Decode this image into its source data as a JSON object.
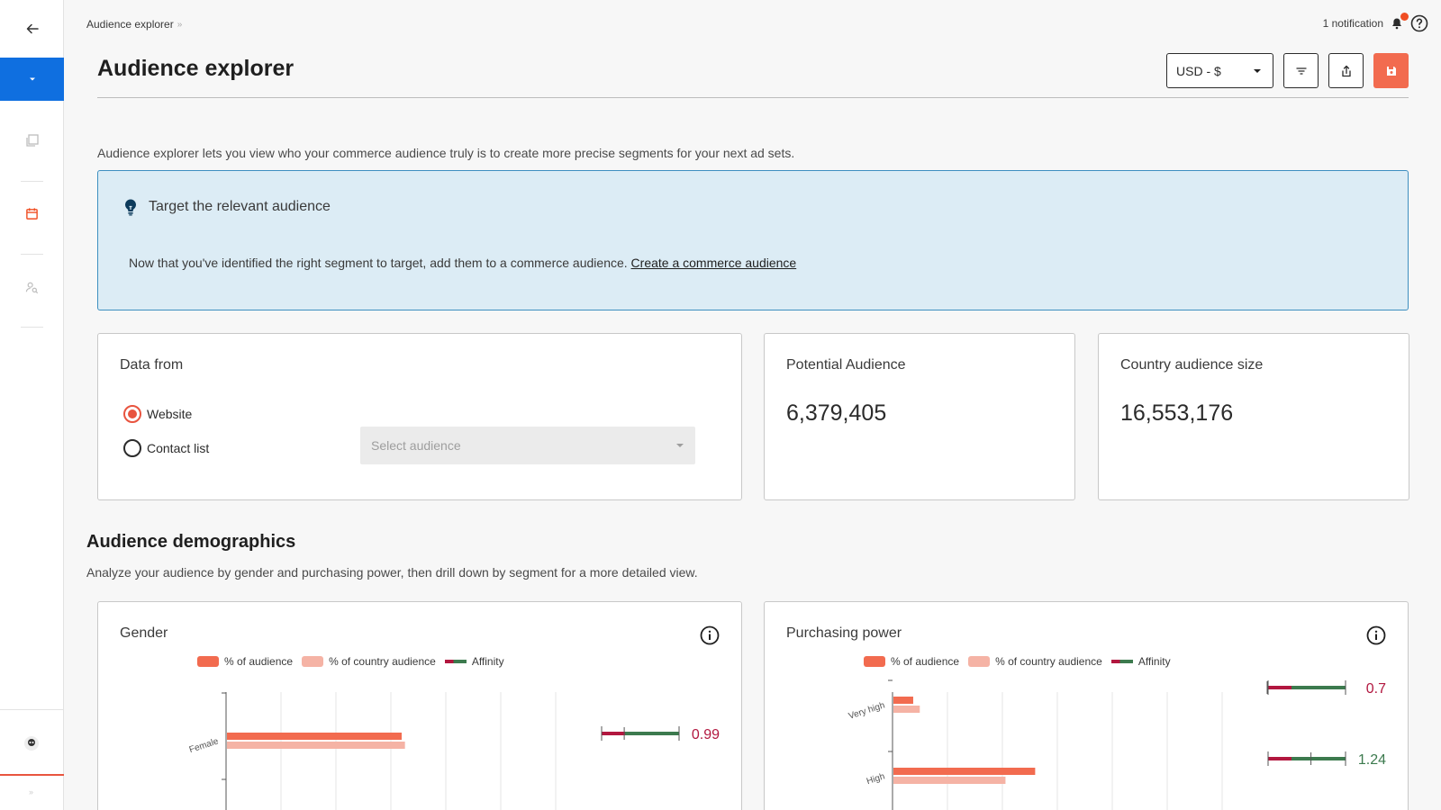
{
  "breadcrumb": {
    "current": "Audience explorer",
    "sep": "»"
  },
  "notifications": {
    "label": "1 notification"
  },
  "header": {
    "title": "Audience explorer",
    "currency": "USD - $"
  },
  "intro": "Audience explorer lets you view who your commerce audience truly is to create more precise segments for your next ad sets.",
  "banner": {
    "title": "Target the relevant audience",
    "text": "Now that you've identified the right segment to target, add them to a commerce audience.",
    "link": "Create a commerce audience"
  },
  "data_from": {
    "title": "Data from",
    "options": [
      {
        "label": "Website",
        "selected": true
      },
      {
        "label": "Contact list",
        "selected": false
      }
    ],
    "select_placeholder": "Select audience"
  },
  "potential": {
    "title": "Potential Audience",
    "value": "6,379,405"
  },
  "country_size": {
    "title": "Country audience size",
    "value": "16,553,176"
  },
  "demographics": {
    "title": "Audience demographics",
    "subtitle": "Analyze your audience by gender and purchasing power, then drill down by segment for a more detailed view."
  },
  "legend": {
    "audience": "% of audience",
    "country": "% of country audience",
    "affinity": "Affinity"
  },
  "colors": {
    "accent": "#e8543f",
    "audience": "#f26b4f",
    "country": "#f5b3a5",
    "affinity_neg": "#b2173f",
    "affinity_pos": "#3c7a4e",
    "brand_blue": "#0f6fe0",
    "banner_bg": "#dcecf5"
  },
  "chart_data": [
    {
      "type": "bar",
      "title": "Gender",
      "categories": [
        "Female"
      ],
      "series": [
        {
          "name": "% of audience",
          "values": [
            53
          ]
        },
        {
          "name": "% of country audience",
          "values": [
            54
          ]
        }
      ],
      "affinity": [
        {
          "label": "0.99",
          "value": 0.99
        }
      ],
      "xlim": [
        0,
        100
      ],
      "grid": true
    },
    {
      "type": "bar",
      "title": "Purchasing power",
      "categories": [
        "Very high",
        "High"
      ],
      "series": [
        {
          "name": "% of audience",
          "values": [
            6,
            43
          ]
        },
        {
          "name": "% of country audience",
          "values": [
            8,
            34
          ]
        }
      ],
      "affinity": [
        {
          "label": "0.7",
          "value": 0.7
        },
        {
          "label": "1.24",
          "value": 1.24
        }
      ],
      "xlim": [
        0,
        100
      ],
      "grid": true
    }
  ]
}
